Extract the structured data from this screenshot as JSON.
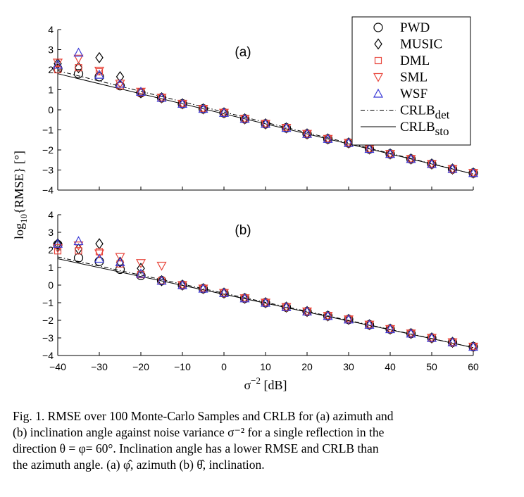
{
  "chart_data": [
    {
      "type": "scatter",
      "panel_label": "(a)",
      "xlim": [
        -40,
        60
      ],
      "ylim": [
        -4,
        4
      ],
      "x_ticks": [
        "−40",
        "−30",
        "−20",
        "−10",
        "0",
        "10",
        "20",
        "30",
        "40",
        "50",
        "60"
      ],
      "y_ticks": [
        "4",
        "3",
        "2",
        "1",
        "0",
        "−1",
        "−2",
        "−3",
        "−4"
      ],
      "x": [
        -40,
        -35,
        -30,
        -25,
        -20,
        -15,
        -10,
        -5,
        0,
        5,
        10,
        15,
        20,
        25,
        30,
        35,
        40,
        45,
        50,
        55,
        60
      ],
      "series": [
        {
          "name": "PWD",
          "marker": "circle",
          "color": "#000000",
          "values": [
            2.05,
            1.8,
            1.65,
            1.2,
            0.85,
            0.6,
            0.3,
            0.05,
            -0.15,
            -0.45,
            -0.7,
            -0.9,
            -1.2,
            -1.45,
            -1.65,
            -1.95,
            -2.2,
            -2.45,
            -2.7,
            -2.95,
            -3.15
          ]
        },
        {
          "name": "MUSIC",
          "marker": "diamond",
          "color": "#000000",
          "values": [
            2.3,
            2.1,
            2.6,
            1.65,
            0.85,
            0.6,
            0.3,
            0.05,
            -0.15,
            -0.45,
            -0.7,
            -0.9,
            -1.2,
            -1.45,
            -1.65,
            -1.95,
            -2.2,
            -2.45,
            -2.7,
            -2.95,
            -3.15
          ]
        },
        {
          "name": "DML",
          "marker": "square",
          "color": "#e8463c",
          "values": [
            2.0,
            2.1,
            1.9,
            1.2,
            0.85,
            0.6,
            0.3,
            0.05,
            -0.15,
            -0.45,
            -0.7,
            -0.9,
            -1.2,
            -1.45,
            -1.65,
            -1.95,
            -2.2,
            -2.45,
            -2.7,
            -2.95,
            -3.15
          ]
        },
        {
          "name": "SML",
          "marker": "triangle-down",
          "color": "#e8463c",
          "values": [
            2.35,
            2.55,
            1.95,
            1.3,
            0.9,
            0.6,
            0.3,
            0.05,
            -0.15,
            -0.45,
            -0.7,
            -0.9,
            -1.2,
            -1.45,
            -1.65,
            -1.95,
            -2.2,
            -2.45,
            -2.7,
            -2.95,
            -3.15
          ]
        },
        {
          "name": "WSF",
          "marker": "triangle-up",
          "color": "#3a3ad6",
          "values": [
            2.25,
            2.85,
            1.75,
            1.3,
            0.9,
            0.6,
            0.3,
            0.05,
            -0.15,
            -0.45,
            -0.7,
            -0.9,
            -1.2,
            -1.45,
            -1.65,
            -1.95,
            -2.2,
            -2.45,
            -2.7,
            -2.95,
            -3.15
          ]
        }
      ],
      "crlb_det": {
        "x": [
          -40,
          60
        ],
        "y": [
          1.95,
          -3.2
        ]
      },
      "crlb_sto": {
        "x": [
          -40,
          60
        ],
        "y": [
          1.8,
          -3.2
        ]
      },
      "legend_position": "top-right"
    },
    {
      "type": "scatter",
      "panel_label": "(b)",
      "xlim": [
        -40,
        60
      ],
      "ylim": [
        -4,
        4
      ],
      "x_ticks": [
        "−40",
        "−30",
        "−20",
        "−10",
        "0",
        "10",
        "20",
        "30",
        "40",
        "50",
        "60"
      ],
      "y_ticks": [
        "4",
        "3",
        "2",
        "1",
        "0",
        "−1",
        "−2",
        "−3",
        "−4"
      ],
      "x": [
        -40,
        -35,
        -30,
        -25,
        -20,
        -15,
        -10,
        -5,
        0,
        5,
        10,
        15,
        20,
        25,
        30,
        35,
        40,
        45,
        50,
        55,
        60
      ],
      "series": [
        {
          "name": "PWD",
          "marker": "circle",
          "color": "#000000",
          "values": [
            2.3,
            1.55,
            1.35,
            0.9,
            0.55,
            0.25,
            0.0,
            -0.2,
            -0.45,
            -0.75,
            -1.0,
            -1.25,
            -1.5,
            -1.75,
            -1.95,
            -2.25,
            -2.5,
            -2.75,
            -3.0,
            -3.25,
            -3.5
          ]
        },
        {
          "name": "MUSIC",
          "marker": "diamond",
          "color": "#000000",
          "values": [
            2.35,
            2.05,
            2.35,
            1.3,
            0.95,
            0.25,
            0.0,
            -0.2,
            -0.45,
            -0.75,
            -1.0,
            -1.25,
            -1.5,
            -1.75,
            -1.95,
            -2.25,
            -2.5,
            -2.75,
            -3.0,
            -3.25,
            -3.5
          ]
        },
        {
          "name": "DML",
          "marker": "square",
          "color": "#e8463c",
          "values": [
            1.95,
            1.95,
            1.9,
            1.2,
            0.6,
            0.25,
            0.0,
            -0.2,
            -0.45,
            -0.75,
            -1.0,
            -1.25,
            -1.5,
            -1.75,
            -1.95,
            -2.25,
            -2.5,
            -2.75,
            -3.0,
            -3.25,
            -3.5
          ]
        },
        {
          "name": "SML",
          "marker": "triangle-down",
          "color": "#e8463c",
          "values": [
            2.1,
            2.25,
            1.8,
            1.6,
            1.25,
            1.1,
            0.0,
            -0.2,
            -0.45,
            -0.75,
            -1.0,
            -1.25,
            -1.5,
            -1.75,
            -1.95,
            -2.25,
            -2.5,
            -2.75,
            -3.0,
            -3.25,
            -3.5
          ]
        },
        {
          "name": "WSF",
          "marker": "triangle-up",
          "color": "#3a3ad6",
          "values": [
            2.35,
            2.5,
            1.5,
            1.3,
            0.65,
            0.25,
            0.0,
            -0.2,
            -0.45,
            -0.75,
            -1.0,
            -1.25,
            -1.5,
            -1.75,
            -1.95,
            -2.25,
            -2.5,
            -2.75,
            -3.0,
            -3.25,
            -3.5
          ]
        }
      ],
      "crlb_det": {
        "x": [
          -40,
          60
        ],
        "y": [
          1.6,
          -3.55
        ]
      },
      "crlb_sto": {
        "x": [
          -40,
          60
        ],
        "y": [
          1.5,
          -3.55
        ]
      },
      "legend_position": "none"
    }
  ],
  "legend": [
    {
      "label": "PWD",
      "marker": "circle",
      "color": "#000000"
    },
    {
      "label": "MUSIC",
      "marker": "diamond",
      "color": "#000000"
    },
    {
      "label": "DML",
      "marker": "square",
      "color": "#e8463c"
    },
    {
      "label": "SML",
      "marker": "triangle-down",
      "color": "#e8463c"
    },
    {
      "label": "WSF",
      "marker": "triangle-up",
      "color": "#3a3ad6"
    },
    {
      "label": "CRLB",
      "sub": "det",
      "line": "dashdot"
    },
    {
      "label": "CRLB",
      "sub": "sto",
      "line": "solid"
    }
  ],
  "axes": {
    "ylabel_pre": "log",
    "ylabel_sub": "10",
    "ylabel_post": "{RMSE} [°]",
    "xlabel_pre": "σ",
    "xlabel_sup": "−2",
    "xlabel_post": " [dB]"
  },
  "caption": {
    "line1": "Fig. 1.   RMSE over 100 Monte-Carlo Samples and CRLB for (a) azimuth and",
    "line2": "(b) inclination angle against noise variance σ⁻² for a single reflection in the",
    "line3": "direction θ = φ= 60°. Inclination angle has a lower RMSE and CRLB than",
    "line4": "the azimuth angle. (a) φ̂, azimuth (b) θ̂, inclination."
  }
}
